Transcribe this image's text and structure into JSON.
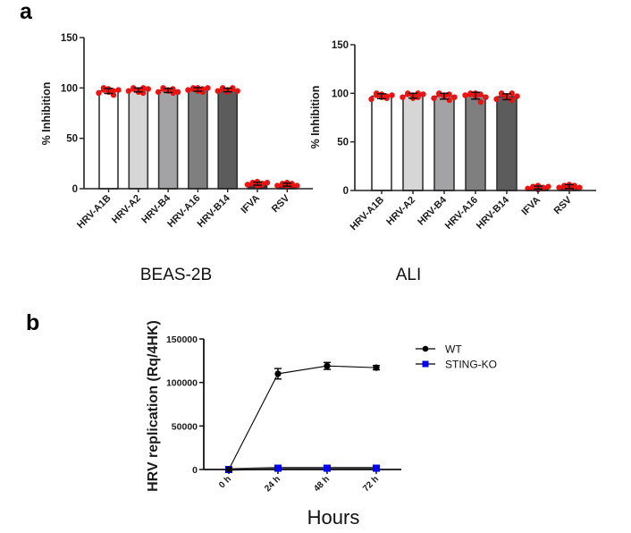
{
  "figure": {
    "panel_a_label": "a",
    "panel_b_label": "b"
  },
  "chart_data": [
    {
      "type": "bar",
      "title": "BEAS-2B",
      "xlabel": "",
      "ylabel": "% Inhibition",
      "ylim": [
        0,
        150
      ],
      "yticks": [
        0,
        50,
        100,
        150
      ],
      "grid": false,
      "categories": [
        "HRV-A1B",
        "HRV-A2",
        "HRV-B4",
        "HRV-A16",
        "HRV-B14",
        "IFVA",
        "RSV"
      ],
      "values": [
        97,
        98,
        97.5,
        98.5,
        98,
        5,
        4
      ],
      "errors": [
        2.5,
        2,
        2,
        1.8,
        1.8,
        1.5,
        1.5
      ],
      "points": [
        [
          95,
          98,
          100,
          96,
          99,
          93,
          97,
          98
        ],
        [
          97,
          99,
          100,
          96,
          98,
          100,
          95,
          99
        ],
        [
          96,
          99,
          100,
          97,
          98,
          95,
          99,
          96
        ],
        [
          98,
          100,
          99,
          97,
          100,
          96,
          99,
          100
        ],
        [
          97,
          99,
          100,
          98,
          96,
          100,
          99,
          97
        ],
        [
          4,
          6,
          5,
          3,
          7,
          5,
          4,
          6
        ],
        [
          3,
          5,
          4,
          2,
          6,
          4,
          5,
          3
        ]
      ],
      "bar_colors": [
        "#ffffff",
        "#d6d6d6",
        "#a3a3a6",
        "#7f7f7f",
        "#5c5c5c",
        "#333333",
        "#333333"
      ],
      "point_color": "#f01010"
    },
    {
      "type": "bar",
      "title": "ALI",
      "xlabel": "",
      "ylabel": "% Inhibition",
      "ylim": [
        0,
        150
      ],
      "yticks": [
        0,
        50,
        100,
        150
      ],
      "grid": false,
      "categories": [
        "HRV-A1B",
        "HRV-A2",
        "HRV-B4",
        "HRV-A16",
        "HRV-B14",
        "IFVA",
        "RSV"
      ],
      "values": [
        97,
        97.5,
        97,
        97.5,
        96.5,
        3,
        4
      ],
      "errors": [
        2.5,
        2.5,
        3,
        3.5,
        3,
        1.5,
        2
      ],
      "points": [
        [
          94,
          98,
          100,
          96,
          99,
          95,
          97,
          98
        ],
        [
          96,
          99,
          100,
          95,
          98,
          100,
          96,
          99
        ],
        [
          95,
          99,
          100,
          97,
          98,
          93,
          99,
          96
        ],
        [
          98,
          100,
          99,
          97,
          100,
          91,
          99,
          96
        ],
        [
          94,
          99,
          100,
          97,
          96,
          100,
          93,
          97
        ],
        [
          2,
          4,
          3,
          1,
          5,
          3,
          2,
          4
        ],
        [
          3,
          5,
          4,
          2,
          6,
          4,
          5,
          3
        ]
      ],
      "bar_colors": [
        "#ffffff",
        "#d6d6d6",
        "#a3a3a6",
        "#7f7f7f",
        "#5c5c5c",
        "#333333",
        "#333333"
      ],
      "point_color": "#f01010"
    },
    {
      "type": "line",
      "title": "",
      "xlabel": "Hours",
      "ylabel": "HRV replication (Rq/4HK)",
      "ylim": [
        0,
        150000
      ],
      "yticks": [
        0,
        50000,
        100000,
        150000
      ],
      "grid": false,
      "legend_position": "right",
      "categories": [
        "0 h",
        "24 h",
        "48 h",
        "72 h"
      ],
      "series": [
        {
          "name": "WT",
          "values": [
            0,
            110000,
            119000,
            117000
          ],
          "errors": [
            0,
            6000,
            4000,
            2500
          ],
          "color": "#000000",
          "marker": "circle"
        },
        {
          "name": "STING-KO",
          "values": [
            0,
            1500,
            1500,
            1500
          ],
          "errors": [
            0,
            500,
            500,
            500
          ],
          "color": "#0000ff",
          "marker": "square"
        }
      ]
    }
  ]
}
